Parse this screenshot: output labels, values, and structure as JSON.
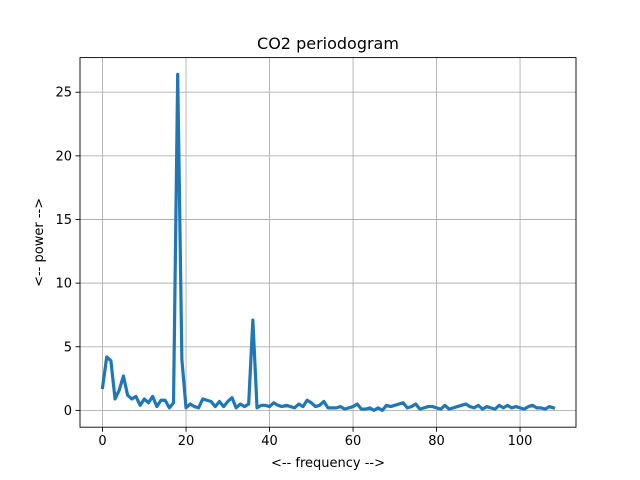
{
  "chart_data": {
    "type": "line",
    "title": "CO2 periodogram",
    "xlabel": "<-- frequency -->",
    "ylabel": "<-- power  -->",
    "xlim": [
      -5.4,
      113.4
    ],
    "ylim": [
      -1.32,
      27.72
    ],
    "xticks": [
      0,
      20,
      40,
      60,
      80,
      100
    ],
    "yticks": [
      0,
      5,
      10,
      15,
      20,
      25
    ],
    "grid": true,
    "line_color": "#1f77b4",
    "series": [
      {
        "x": [
          0,
          1,
          2,
          3,
          4,
          5,
          6,
          7,
          8,
          9,
          10,
          11,
          12,
          13,
          14,
          15,
          16,
          17,
          18,
          19,
          20,
          21,
          22,
          23,
          24,
          25,
          26,
          27,
          28,
          29,
          30,
          31,
          32,
          33,
          34,
          35,
          36,
          37,
          38,
          39,
          40,
          41,
          42,
          43,
          44,
          45,
          46,
          47,
          48,
          49,
          50,
          51,
          52,
          53,
          54,
          55,
          56,
          57,
          58,
          59,
          60,
          61,
          62,
          63,
          64,
          65,
          66,
          67,
          68,
          69,
          70,
          71,
          72,
          73,
          74,
          75,
          76,
          77,
          78,
          79,
          80,
          81,
          82,
          83,
          84,
          85,
          86,
          87,
          88,
          89,
          90,
          91,
          92,
          93,
          94,
          95,
          96,
          97,
          98,
          99,
          100,
          101,
          102,
          103,
          104,
          105,
          106,
          107,
          108
        ],
        "values": [
          1.8,
          4.2,
          3.9,
          0.9,
          1.6,
          2.7,
          1.2,
          0.9,
          1.1,
          0.4,
          0.9,
          0.6,
          1.1,
          0.3,
          0.8,
          0.8,
          0.2,
          0.6,
          26.4,
          4.0,
          0.2,
          0.5,
          0.3,
          0.2,
          0.9,
          0.8,
          0.7,
          0.3,
          0.7,
          0.3,
          0.7,
          1.0,
          0.2,
          0.5,
          0.3,
          0.5,
          7.1,
          0.2,
          0.4,
          0.4,
          0.3,
          0.6,
          0.4,
          0.3,
          0.4,
          0.3,
          0.2,
          0.5,
          0.3,
          0.8,
          0.6,
          0.3,
          0.4,
          0.7,
          0.2,
          0.2,
          0.2,
          0.3,
          0.1,
          0.2,
          0.3,
          0.5,
          0.1,
          0.1,
          0.2,
          0.0,
          0.2,
          0.0,
          0.4,
          0.3,
          0.4,
          0.5,
          0.6,
          0.2,
          0.3,
          0.5,
          0.1,
          0.2,
          0.3,
          0.3,
          0.2,
          0.1,
          0.4,
          0.1,
          0.2,
          0.3,
          0.4,
          0.5,
          0.3,
          0.2,
          0.4,
          0.1,
          0.3,
          0.2,
          0.1,
          0.4,
          0.2,
          0.4,
          0.2,
          0.3,
          0.2,
          0.1,
          0.3,
          0.4,
          0.2,
          0.2,
          0.1,
          0.3,
          0.2
        ]
      }
    ]
  }
}
